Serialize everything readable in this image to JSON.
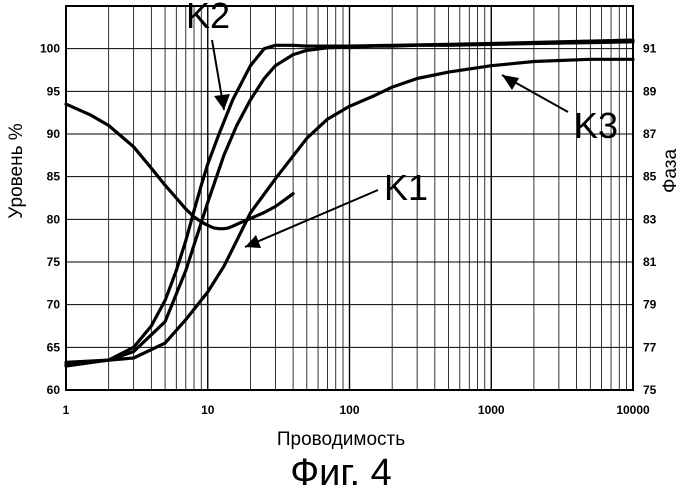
{
  "chart_data": {
    "type": "line",
    "title": "",
    "caption": "Фиг. 4",
    "xlabel": "Проводимость",
    "ylabel": "Уровень %",
    "y2label": "Фаза",
    "x_scale": "log",
    "xlim": [
      1,
      10000
    ],
    "ylim": [
      60,
      105
    ],
    "y2lim": [
      75,
      93
    ],
    "grid": true,
    "x_ticks": [
      "1",
      "10",
      "100",
      "1000",
      "10000"
    ],
    "y_ticks": [
      "60",
      "65",
      "70",
      "75",
      "80",
      "85",
      "90",
      "95",
      "100"
    ],
    "y2_ticks": [
      "75",
      "77",
      "79",
      "81",
      "83",
      "85",
      "87",
      "89",
      "91"
    ],
    "annotations": [
      "K2",
      "K1",
      "K3"
    ],
    "series": [
      {
        "name": "K1",
        "axis": "left",
        "x": [
          1,
          2,
          3,
          5,
          7,
          10,
          13,
          16,
          20,
          25,
          30,
          40,
          50,
          70,
          100,
          150,
          200,
          300,
          500,
          1000,
          2000,
          5000,
          10000
        ],
        "y": [
          63,
          63.5,
          64.5,
          68,
          74,
          82,
          87.5,
          91,
          94,
          96.5,
          98,
          99.3,
          99.8,
          100.1,
          100.2,
          100.3,
          100.3,
          100.4,
          100.4,
          100.5,
          100.6,
          100.7,
          100.8
        ]
      },
      {
        "name": "K2",
        "axis": "left",
        "x": [
          1,
          2,
          3,
          4,
          5,
          6,
          7,
          8,
          9,
          10,
          12,
          15,
          20,
          25,
          30,
          40,
          50,
          100,
          200,
          500,
          1000,
          3000,
          10000
        ],
        "y": [
          62.8,
          63.5,
          65,
          67.5,
          70.5,
          74,
          77.5,
          81,
          84,
          86.5,
          90,
          94,
          98,
          100,
          100.4,
          100.4,
          100.3,
          100.3,
          100.4,
          100.5,
          100.6,
          100.8,
          101
        ]
      },
      {
        "name": "K3",
        "axis": "right",
        "x": [
          1,
          2,
          3,
          5,
          7,
          10,
          13,
          16,
          20,
          30,
          50,
          70,
          100,
          150,
          200,
          300,
          500,
          1000,
          2000,
          5000,
          10000
        ],
        "y": [
          76.3,
          76.4,
          76.5,
          77.2,
          78.3,
          79.6,
          80.8,
          82,
          83.3,
          84.9,
          86.8,
          87.7,
          88.3,
          88.8,
          89.2,
          89.6,
          89.9,
          90.2,
          90.4,
          90.5,
          90.5
        ]
      },
      {
        "name": "",
        "axis": "left",
        "x": [
          1,
          1.5,
          2,
          3,
          4,
          5,
          6,
          7,
          8,
          9,
          10,
          11,
          12,
          13,
          14,
          15,
          17,
          20,
          25,
          30,
          35,
          40
        ],
        "y": [
          93.5,
          92.2,
          91,
          88.5,
          86,
          84,
          82.5,
          81.2,
          80.3,
          79.7,
          79.3,
          79,
          78.9,
          78.9,
          79,
          79.2,
          79.6,
          80.1,
          80.8,
          81.5,
          82.3,
          83
        ]
      }
    ]
  }
}
